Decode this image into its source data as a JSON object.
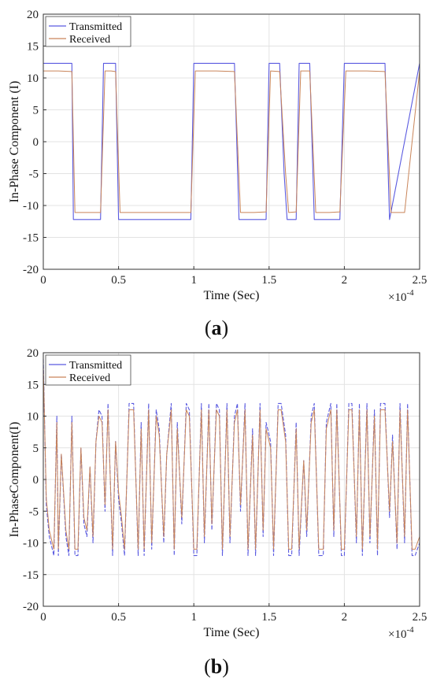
{
  "chart_data": [
    {
      "panel_label": "a",
      "type": "line",
      "xlabel": "Time (Sec)",
      "ylabel": "In-Phase Component (I)",
      "x_exponent": "×10",
      "x_exponent_power": "-4",
      "xlim": [
        0,
        2.5
      ],
      "ylim": [
        -20,
        20
      ],
      "xticks": [
        "0",
        "0.5",
        "1",
        "1.5",
        "2",
        "2.5"
      ],
      "yticks": [
        "-20",
        "-15",
        "-10",
        "-5",
        "0",
        "5",
        "10",
        "15",
        "20"
      ],
      "grid": true,
      "legend_position": "top-left",
      "series": [
        {
          "name": "Transmitted",
          "color": "#5a5ae0",
          "x": [
            0,
            0.19,
            0.2,
            0.2,
            0.38,
            0.4,
            0.4,
            0.48,
            0.5,
            0.5,
            0.98,
            1.0,
            1.0,
            1.27,
            1.3,
            1.3,
            1.48,
            1.5,
            1.5,
            1.57,
            1.6,
            1.62,
            1.68,
            1.7,
            1.7,
            1.77,
            1.8,
            1.8,
            1.97,
            2.0,
            2.0,
            2.27,
            2.3,
            2.3,
            2.5
          ],
          "y": [
            12.3,
            12.3,
            -12.2,
            -12.2,
            -12.2,
            12.3,
            12.3,
            12.3,
            -12.2,
            -12.2,
            -12.2,
            12.3,
            12.3,
            12.3,
            -12.2,
            -12.2,
            -12.2,
            12.3,
            12.3,
            12.3,
            -5,
            -12.2,
            -12.2,
            12.3,
            12.3,
            12.3,
            -12.2,
            -12.2,
            -12.2,
            12.3,
            12.3,
            12.3,
            -12.2,
            -12.2,
            12.3
          ]
        },
        {
          "name": "Received",
          "color": "#c9855a",
          "x": [
            0,
            0.1,
            0.19,
            0.21,
            0.3,
            0.38,
            0.41,
            0.45,
            0.48,
            0.51,
            0.7,
            0.98,
            1.01,
            1.15,
            1.27,
            1.31,
            1.4,
            1.48,
            1.51,
            1.57,
            1.61,
            1.63,
            1.68,
            1.71,
            1.77,
            1.81,
            1.9,
            1.97,
            2.01,
            2.15,
            2.27,
            2.31,
            2.4,
            2.5
          ],
          "y": [
            11.1,
            11.1,
            11.0,
            -11.1,
            -11.1,
            -11.1,
            11.1,
            11.1,
            11.0,
            -11.1,
            -11.1,
            -11.1,
            11.1,
            11.1,
            11.0,
            -11.1,
            -11.1,
            -11.0,
            11.1,
            11.0,
            -5,
            -11.1,
            -11.0,
            11.1,
            11.1,
            -11.1,
            -11.1,
            -11.0,
            11.1,
            11.1,
            11.0,
            -11.1,
            -11.1,
            11.1
          ]
        }
      ]
    },
    {
      "panel_label": "b",
      "type": "line",
      "xlabel": "Time (Sec)",
      "ylabel": "In-PhaseComponent(I)",
      "x_exponent": "×10",
      "x_exponent_power": "-4",
      "xlim": [
        0,
        2.5
      ],
      "ylim": [
        -20,
        20
      ],
      "xticks": [
        "0",
        "0.5",
        "1",
        "1.5",
        "2",
        "2.5"
      ],
      "yticks": [
        "-20",
        "-15",
        "-10",
        "-5",
        "0",
        "5",
        "10",
        "15",
        "20"
      ],
      "grid": true,
      "legend_position": "top-left",
      "series": [
        {
          "name": "Transmitted",
          "color": "#5a5ae0",
          "x": [
            0,
            0.02,
            0.04,
            0.07,
            0.09,
            0.1,
            0.12,
            0.15,
            0.17,
            0.19,
            0.21,
            0.23,
            0.25,
            0.27,
            0.29,
            0.31,
            0.33,
            0.35,
            0.37,
            0.39,
            0.41,
            0.43,
            0.46,
            0.48,
            0.5,
            0.52,
            0.54,
            0.57,
            0.6,
            0.63,
            0.65,
            0.67,
            0.7,
            0.72,
            0.75,
            0.77,
            0.8,
            0.82,
            0.85,
            0.87,
            0.89,
            0.92,
            0.95,
            0.97,
            1.0,
            1.02,
            1.05,
            1.07,
            1.1,
            1.12,
            1.15,
            1.17,
            1.19,
            1.22,
            1.24,
            1.27,
            1.29,
            1.31,
            1.34,
            1.36,
            1.39,
            1.41,
            1.44,
            1.46,
            1.48,
            1.51,
            1.53,
            1.56,
            1.58,
            1.61,
            1.63,
            1.65,
            1.68,
            1.7,
            1.73,
            1.75,
            1.78,
            1.8,
            1.83,
            1.86,
            1.88,
            1.91,
            1.93,
            1.95,
            1.98,
            2.0,
            2.03,
            2.05,
            2.08,
            2.1,
            2.12,
            2.15,
            2.17,
            2.2,
            2.22,
            2.24,
            2.27,
            2.3,
            2.32,
            2.35,
            2.37,
            2.4,
            2.42,
            2.45,
            2.47,
            2.5
          ],
          "y": [
            19,
            -4,
            -9,
            -12,
            10,
            -12,
            4,
            -9,
            -12,
            10,
            -12,
            -12,
            5,
            -7,
            -9,
            2,
            -10,
            6,
            11,
            10,
            -5,
            12,
            -12,
            6,
            -3,
            -7,
            -12,
            12,
            12,
            -12,
            9,
            -12,
            12,
            -11,
            11,
            8,
            -10,
            4,
            12,
            -12,
            9,
            -7,
            12,
            11,
            -12,
            -12,
            12,
            -10,
            12,
            -8,
            12,
            11,
            -12,
            12,
            -10,
            10,
            12,
            -5,
            12,
            -12,
            8,
            -12,
            12,
            -9,
            9,
            6,
            -12,
            12,
            12,
            7,
            -12,
            -12,
            9,
            -12,
            3,
            -9,
            10,
            12,
            -12,
            -12,
            9,
            12,
            -9,
            12,
            -12,
            -12,
            12,
            12,
            -10,
            12,
            -12,
            12,
            -10,
            11,
            -12,
            12,
            12,
            -6,
            7,
            -11,
            12,
            -10,
            12,
            -12,
            -12,
            -10
          ],
          "dashed": true
        },
        {
          "name": "Received",
          "color": "#c9855a",
          "x": [
            0,
            0.02,
            0.04,
            0.07,
            0.09,
            0.1,
            0.12,
            0.15,
            0.17,
            0.19,
            0.21,
            0.23,
            0.25,
            0.27,
            0.29,
            0.31,
            0.33,
            0.35,
            0.37,
            0.39,
            0.41,
            0.43,
            0.46,
            0.48,
            0.5,
            0.52,
            0.54,
            0.57,
            0.6,
            0.63,
            0.65,
            0.67,
            0.7,
            0.72,
            0.75,
            0.77,
            0.8,
            0.82,
            0.85,
            0.87,
            0.89,
            0.92,
            0.95,
            0.97,
            1.0,
            1.02,
            1.05,
            1.07,
            1.1,
            1.12,
            1.15,
            1.17,
            1.19,
            1.22,
            1.24,
            1.27,
            1.29,
            1.31,
            1.34,
            1.36,
            1.39,
            1.41,
            1.44,
            1.46,
            1.48,
            1.51,
            1.53,
            1.56,
            1.58,
            1.61,
            1.63,
            1.65,
            1.68,
            1.7,
            1.73,
            1.75,
            1.78,
            1.8,
            1.83,
            1.86,
            1.88,
            1.91,
            1.93,
            1.95,
            1.98,
            2.0,
            2.03,
            2.05,
            2.08,
            2.1,
            2.12,
            2.15,
            2.17,
            2.2,
            2.22,
            2.24,
            2.27,
            2.3,
            2.32,
            2.35,
            2.37,
            2.4,
            2.42,
            2.45,
            2.47,
            2.5
          ],
          "y": [
            18,
            -3,
            -8,
            -11,
            9,
            -11,
            4,
            -8,
            -11,
            9,
            -11,
            -11,
            5,
            -6,
            -8,
            2,
            -9,
            6,
            10,
            9,
            -4,
            11,
            -11,
            6,
            -2,
            -6,
            -11,
            11,
            11,
            -11,
            8,
            -11,
            11,
            -10,
            10,
            7,
            -9,
            4,
            11,
            -11,
            8,
            -6,
            11,
            10,
            -11,
            -11,
            11,
            -9,
            11,
            -7,
            11,
            10,
            -11,
            11,
            -9,
            9,
            11,
            -4,
            11,
            -11,
            7,
            -11,
            11,
            -8,
            8,
            5,
            -11,
            11,
            11,
            6,
            -11,
            -11,
            8,
            -11,
            3,
            -8,
            9,
            11,
            -11,
            -11,
            8,
            11,
            -8,
            11,
            -11,
            -11,
            11,
            11,
            -9,
            11,
            -11,
            11,
            -9,
            10,
            -11,
            11,
            11,
            -5,
            6,
            -10,
            11,
            -9,
            11,
            -11,
            -11,
            -9
          ]
        }
      ]
    }
  ]
}
